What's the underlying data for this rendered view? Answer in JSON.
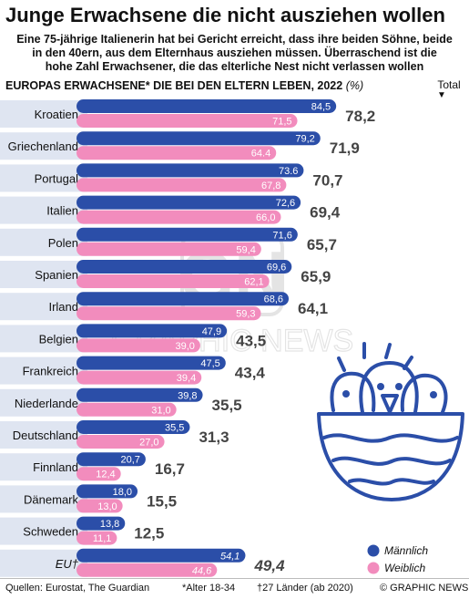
{
  "header": {
    "title": "Junge Erwachsene die nicht ausziehen wollen",
    "subtitle_lines": [
      "Eine 75-jährige Italienerin hat bei Gericht erreicht, dass ihre beiden Söhne, beide",
      "in den 40ern, aus dem Elternhaus ausziehen müssen. Überraschend ist die",
      "hohe Zahl Erwachsener, die das elterliche Nest nicht verlassen wollen"
    ]
  },
  "chart_heading": {
    "text": "EUROPAS ERWACHSENE* DIE BEI DEN ELTERN LEBEN, 2022",
    "unit": "(%)",
    "total_label": "Total"
  },
  "chart_data": {
    "type": "bar",
    "orientation": "horizontal",
    "title": "EUROPAS ERWACHSENE* DIE BEI DEN ELTERN LEBEN, 2022 (%)",
    "categories": [
      "Kroatien",
      "Griechenland",
      "Portugal",
      "Italien",
      "Polen",
      "Spanien",
      "Irland",
      "Belgien",
      "Frankreich",
      "Niederlande",
      "Deutschland",
      "Finnland",
      "Dänemark",
      "Schweden",
      "EU†"
    ],
    "series": [
      {
        "name": "Männlich",
        "color": "#2b4ea8",
        "values": [
          84.5,
          79.2,
          73.6,
          72.6,
          71.6,
          69.6,
          68.6,
          47.9,
          47.5,
          39.8,
          35.5,
          20.7,
          18.0,
          13.8,
          54.1
        ],
        "labels": [
          "84,5",
          "79,2",
          "73.6",
          "72,6",
          "71,6",
          "69,6",
          "68,6",
          "47,9",
          "47,5",
          "39,8",
          "35,5",
          "20,7",
          "18,0",
          "13,8",
          "54,1"
        ]
      },
      {
        "name": "Weiblich",
        "color": "#f28cbd",
        "values": [
          71.5,
          64.4,
          67.8,
          66.0,
          59.4,
          62.1,
          59.3,
          39.0,
          39.4,
          31.0,
          27.0,
          12.4,
          13.0,
          11.1,
          44.6
        ],
        "labels": [
          "71,5",
          "64.4",
          "67,8",
          "66,0",
          "59,4",
          "62,1",
          "59,3",
          "39,0",
          "39,4",
          "31,0",
          "27,0",
          "12,4",
          "13,0",
          "11,1",
          "44,6"
        ]
      }
    ],
    "totals": [
      78.2,
      71.9,
      70.7,
      69.4,
      65.7,
      65.9,
      64.1,
      43.5,
      43.4,
      35.5,
      31.3,
      16.7,
      15.5,
      12.5,
      49.4
    ],
    "total_labels": [
      "78,2",
      "71,9",
      "70,7",
      "69,4",
      "65,7",
      "65,9",
      "64,1",
      "43,5",
      "43,4",
      "35,5",
      "31,3",
      "16,7",
      "15,5",
      "12,5",
      "49,4"
    ],
    "xlim": [
      0,
      100
    ],
    "legend": {
      "position": "bottom-right",
      "entries": [
        "Männlich",
        "Weiblich"
      ]
    },
    "colors": {
      "row_band": "#dfe5f1",
      "male": "#2b4ea8",
      "female": "#f28cbd",
      "total_text": "#444444",
      "illustration": "#2b4ea8"
    }
  },
  "watermark": {
    "logo": "GN",
    "text": "GRAPHIC NEWS"
  },
  "footer": {
    "sources": "Quellen: Eurostat, The Guardian",
    "age_note": "*Alter 18-34",
    "eu_note": "†27 Länder (ab 2020)",
    "credit": "© GRAPHIC NEWS"
  }
}
